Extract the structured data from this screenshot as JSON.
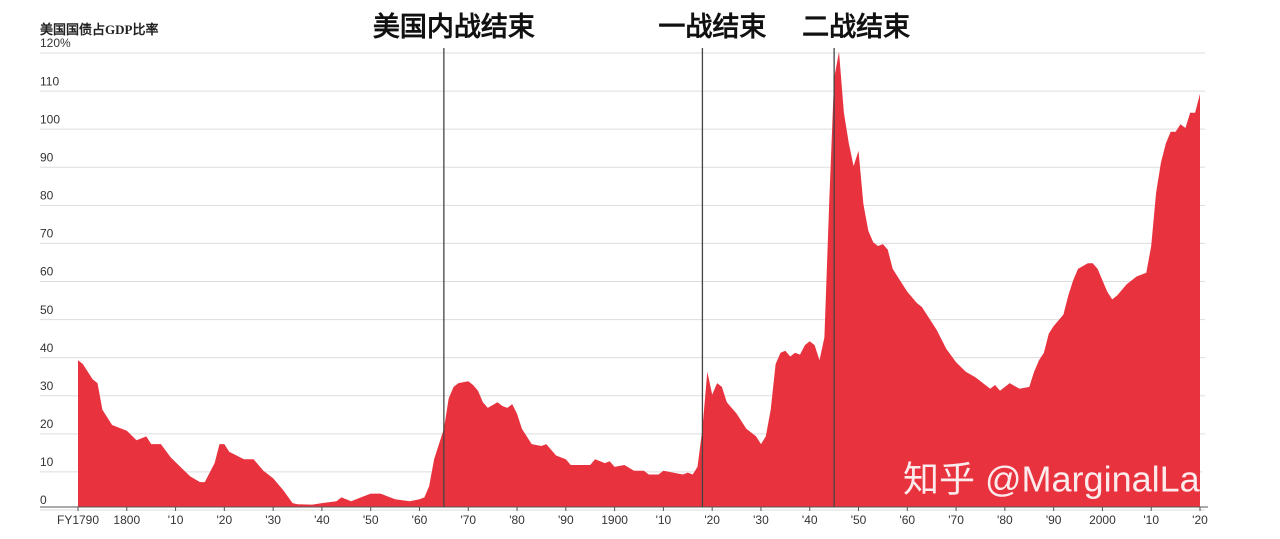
{
  "chart_data": {
    "type": "area",
    "title": "美国国债占GDP比率",
    "watermark": "知乎 @MarginalLab",
    "x": [
      1790,
      1791,
      1793,
      1794,
      1795,
      1797,
      1800,
      1802,
      1804,
      1805,
      1807,
      1809,
      1811,
      1813,
      1815,
      1816,
      1818,
      1819,
      1820,
      1821,
      1824,
      1826,
      1828,
      1830,
      1832,
      1834,
      1835,
      1838,
      1840,
      1843,
      1844,
      1846,
      1848,
      1850,
      1852,
      1853,
      1855,
      1858,
      1860,
      1861,
      1862,
      1863,
      1865,
      1866,
      1867,
      1868,
      1870,
      1871,
      1872,
      1873,
      1874,
      1876,
      1877,
      1878,
      1879,
      1880,
      1881,
      1883,
      1885,
      1886,
      1888,
      1890,
      1891,
      1895,
      1896,
      1898,
      1899,
      1900,
      1902,
      1904,
      1906,
      1907,
      1909,
      1910,
      1912,
      1914,
      1915,
      1916,
      1917,
      1918,
      1919,
      1920,
      1921,
      1922,
      1923,
      1925,
      1927,
      1929,
      1930,
      1931,
      1932,
      1933,
      1934,
      1935,
      1936,
      1937,
      1938,
      1939,
      1940,
      1941,
      1942,
      1943,
      1944,
      1945,
      1946,
      1947,
      1948,
      1949,
      1950,
      1951,
      1952,
      1953,
      1954,
      1955,
      1956,
      1957,
      1959,
      1960,
      1962,
      1963,
      1964,
      1966,
      1968,
      1970,
      1972,
      1974,
      1976,
      1977,
      1978,
      1979,
      1981,
      1983,
      1985,
      1986,
      1987,
      1988,
      1989,
      1990,
      1992,
      1993,
      1994,
      1995,
      1997,
      1998,
      1999,
      2000,
      2001,
      2002,
      2003,
      2005,
      2007,
      2009,
      2010,
      2011,
      2012,
      2013,
      2014,
      2015,
      2016,
      2017,
      2018,
      2019,
      2020
    ],
    "series": [
      {
        "name": "美国国债占GDP比率",
        "color": "#e8333f",
        "values": [
          38,
          37,
          33,
          32,
          25,
          21,
          19.5,
          17,
          18,
          16,
          16,
          12.5,
          10,
          7.5,
          6,
          6,
          11,
          16,
          16,
          14,
          12,
          12,
          9,
          7,
          4,
          0.5,
          0.2,
          0.1,
          0.5,
          1,
          2,
          1,
          2,
          3,
          3,
          2.5,
          1.5,
          1,
          1.5,
          2,
          5,
          12,
          20,
          28,
          31,
          32,
          32.5,
          31.5,
          30,
          27,
          25.5,
          27,
          26,
          25.5,
          26.5,
          24,
          20,
          16,
          15.5,
          16,
          13,
          12,
          10.5,
          10.5,
          12,
          11,
          11.5,
          10,
          10.5,
          9,
          9,
          8,
          8,
          9,
          8.5,
          8,
          8.5,
          8,
          10,
          20,
          35,
          29,
          32,
          31,
          27,
          24,
          20,
          18,
          16,
          18,
          25,
          37,
          40,
          40.5,
          39,
          40,
          39.5,
          42,
          43,
          42,
          38,
          44,
          80,
          112,
          119,
          103,
          95,
          89,
          93,
          79,
          72,
          69,
          68,
          68.5,
          67,
          62,
          58,
          56,
          53,
          52,
          50,
          46,
          41,
          37.5,
          35,
          33.5,
          31.5,
          30.5,
          31.5,
          30,
          32,
          30.5,
          31,
          35,
          38,
          40,
          45,
          47,
          50,
          55,
          59,
          62,
          63.5,
          63.5,
          62,
          59,
          56,
          54,
          55,
          58,
          60,
          61,
          68,
          82,
          90,
          95,
          98,
          98,
          100,
          99,
          103,
          103,
          108
        ]
      }
    ],
    "xlim": [
      1790,
      2020
    ],
    "ylim": [
      0,
      120
    ],
    "yticks": [
      0,
      10,
      20,
      30,
      40,
      50,
      60,
      70,
      80,
      90,
      100,
      110,
      {
        "value": 120,
        "label": "120%"
      }
    ],
    "xticks": [
      {
        "value": 1790,
        "label": "FY1790"
      },
      1800,
      {
        "value": 1810,
        "label": "'10"
      },
      {
        "value": 1820,
        "label": "'20"
      },
      {
        "value": 1830,
        "label": "'30"
      },
      {
        "value": 1840,
        "label": "'40"
      },
      {
        "value": 1850,
        "label": "'50"
      },
      {
        "value": 1860,
        "label": "'60"
      },
      {
        "value": 1870,
        "label": "'70"
      },
      {
        "value": 1880,
        "label": "'80"
      },
      {
        "value": 1890,
        "label": "'90"
      },
      1900,
      {
        "value": 1910,
        "label": "'10"
      },
      {
        "value": 1920,
        "label": "'20"
      },
      {
        "value": 1930,
        "label": "'30"
      },
      {
        "value": 1940,
        "label": "'40"
      },
      {
        "value": 1950,
        "label": "'50"
      },
      {
        "value": 1960,
        "label": "'60"
      },
      {
        "value": 1970,
        "label": "'70"
      },
      {
        "value": 1980,
        "label": "'80"
      },
      {
        "value": 1990,
        "label": "'90"
      },
      2000,
      {
        "value": 2010,
        "label": "'10"
      },
      {
        "value": 2020,
        "label": "'20"
      }
    ],
    "grid": true,
    "annotations": [
      {
        "x": 1865,
        "label": "美国内战结束"
      },
      {
        "x": 1918,
        "label": "一战结束"
      },
      {
        "x": 1945,
        "label": "二战结束"
      }
    ]
  }
}
